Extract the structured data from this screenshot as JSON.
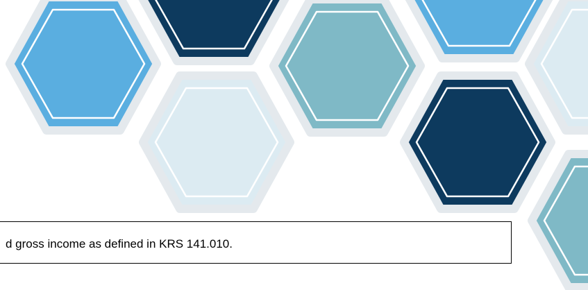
{
  "text": "d gross income as defined in KRS 141.010."
}
